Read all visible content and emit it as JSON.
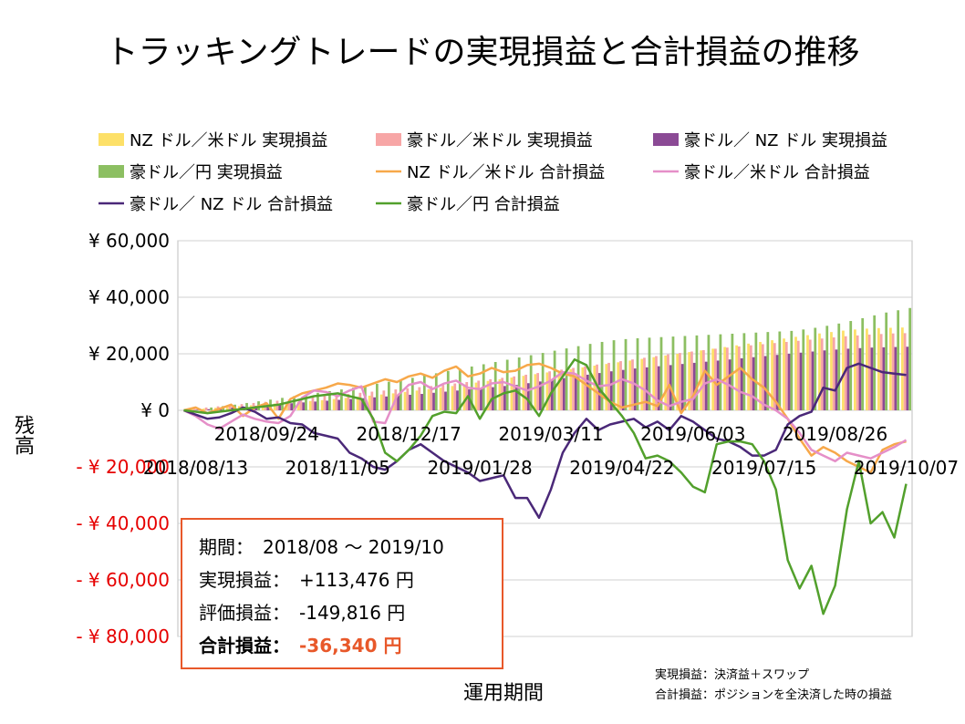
{
  "title": "トラッキングトレードの実現損益と合計損益の推移",
  "colors": {
    "nzd_usd_realized": "#fde068",
    "aud_usd_realized": "#f7a6a6",
    "aud_nzd_realized": "#8b4a95",
    "aud_jpy_realized": "#8cbf62",
    "nzd_usd_total": "#f7a84a",
    "aud_usd_total": "#e58fc8",
    "aud_nzd_total": "#4a2878",
    "aud_jpy_total": "#52a02c",
    "negative_tick": "#e60000",
    "summary_border": "#e8582a"
  },
  "axes": {
    "ylabel": "残高",
    "xlabel": "運用期間",
    "yticks": [
      {
        "value": 60000,
        "label": "¥ 60,000"
      },
      {
        "value": 40000,
        "label": "¥ 40,000"
      },
      {
        "value": 20000,
        "label": "¥ 20,000"
      },
      {
        "value": 0,
        "label": "¥ 0"
      },
      {
        "value": -20000,
        "label": "- ¥ 20,000"
      },
      {
        "value": -40000,
        "label": "- ¥ 40,000"
      },
      {
        "value": -60000,
        "label": "- ¥ 60,000"
      },
      {
        "value": -80000,
        "label": "- ¥ 80,000"
      }
    ]
  },
  "summary": {
    "period_label": "期間：",
    "period_value": "2018/08 ～ 2019/10",
    "realized_label": "実現損益：",
    "realized_value": "+113,476 円",
    "unrealized_label": "評価損益：",
    "unrealized_value": "-149,816 円",
    "total_label": "合計損益：",
    "total_value": "-36,340 円"
  },
  "notes": {
    "line1": "実現損益：決済益＋スワップ",
    "line2": "合計損益：ポジションを全決済した時の損益"
  },
  "chart_data": {
    "type": "bar+line",
    "ylim": [
      -80000,
      60000
    ],
    "grid": true,
    "legend": "top",
    "x_ticks_upper": [
      {
        "index": 7,
        "label": "2018/09/24"
      },
      {
        "index": 19,
        "label": "2018/12/17"
      },
      {
        "index": 31,
        "label": "2019/03/11"
      },
      {
        "index": 43,
        "label": "2019/06/03"
      },
      {
        "index": 55,
        "label": "2019/08/26"
      }
    ],
    "x_ticks_lower": [
      {
        "index": 1,
        "label": "2018/08/13"
      },
      {
        "index": 13,
        "label": "2018/11/05"
      },
      {
        "index": 25,
        "label": "2019/01/28"
      },
      {
        "index": 37,
        "label": "2019/04/22"
      },
      {
        "index": 49,
        "label": "2019/07/15"
      },
      {
        "index": 61,
        "label": "2019/10/07"
      }
    ],
    "bar_series": [
      {
        "key": "nzd_usd_realized",
        "name": "NZ ドル／米ドル 実現損益",
        "values": [
          0,
          300,
          600,
          900,
          1200,
          1500,
          1800,
          2100,
          2400,
          2700,
          3000,
          3300,
          3600,
          4000,
          4400,
          4800,
          5200,
          5600,
          6000,
          6500,
          7000,
          7500,
          8000,
          8600,
          9200,
          9800,
          10400,
          11000,
          11600,
          12200,
          12800,
          13400,
          14000,
          14600,
          15200,
          15800,
          16400,
          17000,
          17600,
          18200,
          18800,
          19400,
          20000,
          20600,
          21200,
          21800,
          22400,
          23000,
          23600,
          24200,
          24800,
          25400,
          26000,
          26600,
          27200,
          27700,
          28200,
          28600,
          28900,
          29100,
          29200,
          29300
        ]
      },
      {
        "key": "aud_usd_realized",
        "name": "豪ドル／米ドル 実現損益",
        "values": [
          0,
          500,
          1000,
          1400,
          1800,
          2200,
          2600,
          3000,
          3400,
          3800,
          4200,
          4600,
          5000,
          5400,
          5800,
          6200,
          6600,
          7000,
          7400,
          7800,
          8200,
          8600,
          9000,
          9500,
          10000,
          10500,
          11000,
          11500,
          12000,
          12600,
          13200,
          13800,
          14400,
          15000,
          15600,
          16200,
          16800,
          17400,
          18000,
          18600,
          19200,
          19800,
          20300,
          20800,
          21300,
          21800,
          22200,
          22600,
          23000,
          23400,
          23800,
          24200,
          24600,
          25000,
          25400,
          25800,
          26200,
          26500,
          26800,
          27000,
          27200,
          27300
        ]
      },
      {
        "key": "aud_nzd_realized",
        "name": "豪ドル／ NZ ドル 実現損益",
        "values": [
          0,
          200,
          400,
          700,
          1000,
          1300,
          1600,
          1900,
          2200,
          2500,
          2800,
          3100,
          3400,
          3700,
          4000,
          4300,
          4600,
          4900,
          5200,
          5500,
          5800,
          6200,
          6600,
          7000,
          7400,
          7800,
          8200,
          8600,
          9000,
          9600,
          10200,
          10800,
          11400,
          12000,
          12600,
          13200,
          13800,
          14300,
          14800,
          15200,
          15600,
          16000,
          16400,
          16800,
          17200,
          17600,
          18000,
          18400,
          18800,
          19200,
          19600,
          20000,
          20400,
          20800,
          21200,
          21500,
          21800,
          22000,
          22200,
          22300,
          22400,
          22500
        ]
      },
      {
        "key": "aud_jpy_realized",
        "name": "豪ドル／円 実現損益",
        "values": [
          0,
          500,
          1000,
          1500,
          2000,
          2600,
          3200,
          3800,
          4400,
          5000,
          5600,
          6200,
          6800,
          7400,
          8000,
          8700,
          9400,
          10100,
          10800,
          11500,
          12300,
          13100,
          13900,
          14700,
          15500,
          16300,
          17100,
          17900,
          18700,
          19500,
          20300,
          21100,
          21900,
          22700,
          23500,
          24200,
          24800,
          25200,
          25500,
          25700,
          25900,
          26100,
          26300,
          26500,
          26700,
          26900,
          27100,
          27300,
          27500,
          27700,
          27900,
          28100,
          28600,
          29200,
          29900,
          30700,
          31600,
          32600,
          33600,
          34600,
          35400,
          36200
        ]
      }
    ],
    "line_series": [
      {
        "key": "nzd_usd_total",
        "name": "NZ ドル／米ドル 合計損益",
        "values": [
          0,
          1000,
          -1000,
          500,
          2000,
          -2000,
          1000,
          2500,
          -3000,
          4000,
          6000,
          7000,
          8000,
          9500,
          9000,
          8000,
          9500,
          11000,
          10000,
          12000,
          13000,
          11500,
          14000,
          15500,
          12000,
          13000,
          15000,
          13500,
          14000,
          16000,
          16500,
          15000,
          13000,
          12000,
          9000,
          6000,
          3000,
          1000,
          2000,
          3000,
          1500,
          9000,
          -1000,
          5000,
          14000,
          9000,
          12000,
          15000,
          11000,
          8000,
          3000,
          -3000,
          -10000,
          -16000,
          -13000,
          -15000,
          -18000,
          -20000,
          -22000,
          -14000,
          -12000,
          -11000
        ]
      },
      {
        "key": "aud_usd_total",
        "name": "豪ドル／米ドル 合計損益",
        "values": [
          0,
          -2000,
          -5000,
          -6500,
          -4000,
          -1500,
          -3000,
          -4000,
          -4500,
          -2000,
          4500,
          7000,
          6500,
          5000,
          7000,
          8500,
          -4000,
          -4500,
          5000,
          9000,
          10000,
          7500,
          9500,
          10500,
          8000,
          7500,
          9500,
          10000,
          8500,
          7000,
          8500,
          10500,
          13500,
          13000,
          10500,
          8500,
          9000,
          11000,
          9500,
          7000,
          3500,
          1500,
          3000,
          4000,
          9500,
          11000,
          9000,
          6500,
          5000,
          2000,
          0,
          -3000,
          -8000,
          -14000,
          -16000,
          -18000,
          -15000,
          -16000,
          -17000,
          -15000,
          -13000,
          -10500
        ]
      },
      {
        "key": "aud_nzd_total",
        "name": "豪ドル／ NZ ドル 合計損益",
        "values": [
          0,
          -1500,
          -3000,
          -2500,
          -1000,
          1000,
          -500,
          -3000,
          -2500,
          -4500,
          -5000,
          -8000,
          -9000,
          -10000,
          -15000,
          -17000,
          -20000,
          -21000,
          -18000,
          -14000,
          -12000,
          -15000,
          -18000,
          -20000,
          -22000,
          -25000,
          -24000,
          -23000,
          -31000,
          -31000,
          -38000,
          -28000,
          -15000,
          -8000,
          -3000,
          -7000,
          -5000,
          -4000,
          -3000,
          -6000,
          -4000,
          -7000,
          -2000,
          -4000,
          -7000,
          -10000,
          -11000,
          -13000,
          -16000,
          -16000,
          -14000,
          -5000,
          -2000,
          -500,
          8000,
          7000,
          15000,
          16500,
          15000,
          13500,
          13000,
          12500
        ]
      },
      {
        "key": "aud_jpy_total",
        "name": "豪ドル／円 合計損益",
        "values": [
          0,
          -500,
          -1000,
          -500,
          0,
          500,
          1000,
          1500,
          2000,
          3000,
          4000,
          5000,
          5500,
          6000,
          5000,
          4000,
          -3000,
          -15000,
          -18000,
          -14000,
          -9000,
          -2000,
          -500,
          -1000,
          5000,
          -3000,
          4000,
          6000,
          7000,
          4000,
          -2000,
          6000,
          12000,
          18000,
          16000,
          8000,
          3000,
          -2000,
          -8000,
          -17000,
          -16000,
          -18000,
          -22000,
          -27000,
          -29000,
          -12000,
          -11000,
          -11000,
          -12000,
          -18000,
          -28000,
          -53000,
          -63000,
          -55000,
          -72000,
          -62000,
          -35000,
          -18000,
          -40000,
          -36000,
          -45000,
          -26000
        ]
      }
    ]
  }
}
